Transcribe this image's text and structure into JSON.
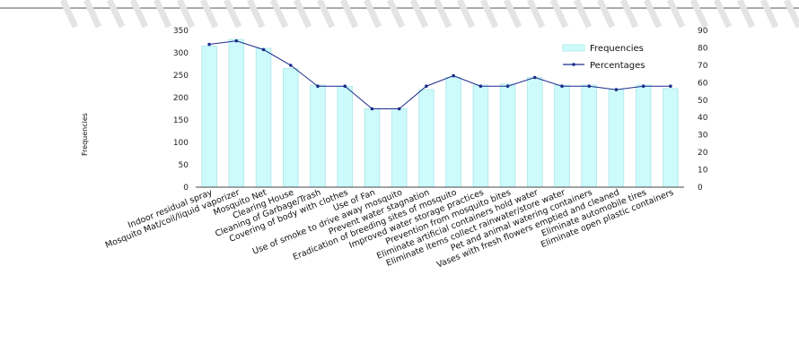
{
  "chart_data": {
    "type": "bar+line",
    "categories": [
      "Indoor residual spray",
      "Mosquito Mat/coil/liquid vaporizer",
      "Mosquito Net",
      "Clearing House",
      "Cleaning of Garbage/Trash",
      "Covering of body with clothes",
      "Use of Fan",
      "Use of smoke to drive away mosquito",
      "Prevent water stagnation",
      "Eradication of breeding sites of mosquito",
      "Improved water storage practices",
      "Prevention from mosquito bites",
      "Eliminate artificial containers hold water",
      "Eliminate items collect rainwater/store water",
      "Pet and animal watering containers",
      "Vases with fresh flowers emptied and cleaned",
      "Eliminate automobile tires",
      "Eliminate open plastic containers"
    ],
    "series": [
      {
        "name": "Frequencies",
        "kind": "bar",
        "axis": "left",
        "values": [
          315,
          330,
          310,
          265,
          228,
          225,
          175,
          175,
          218,
          245,
          228,
          230,
          245,
          228,
          228,
          218,
          228,
          220
        ]
      },
      {
        "name": "Percentages",
        "kind": "line",
        "axis": "right",
        "values": [
          82,
          84,
          79,
          70,
          58,
          58,
          45,
          45,
          58,
          64,
          58,
          58,
          63,
          58,
          58,
          56,
          58,
          58
        ]
      }
    ],
    "ylabel": "Frequencies",
    "ylim": [
      0,
      350
    ],
    "yticks": [
      "0",
      "50",
      "100",
      "150",
      "200",
      "250",
      "300",
      "350"
    ],
    "y2lim": [
      0,
      90
    ],
    "y2ticks": [
      "0",
      "10",
      "20",
      "30",
      "40",
      "50",
      "60",
      "70",
      "80",
      "90"
    ],
    "legend_position": "top-right",
    "colors": {
      "bar_fill": "#cdfbfb",
      "bar_edge": "#b7e9ee",
      "line": "#1c2c8a",
      "axis": "#444444"
    }
  }
}
